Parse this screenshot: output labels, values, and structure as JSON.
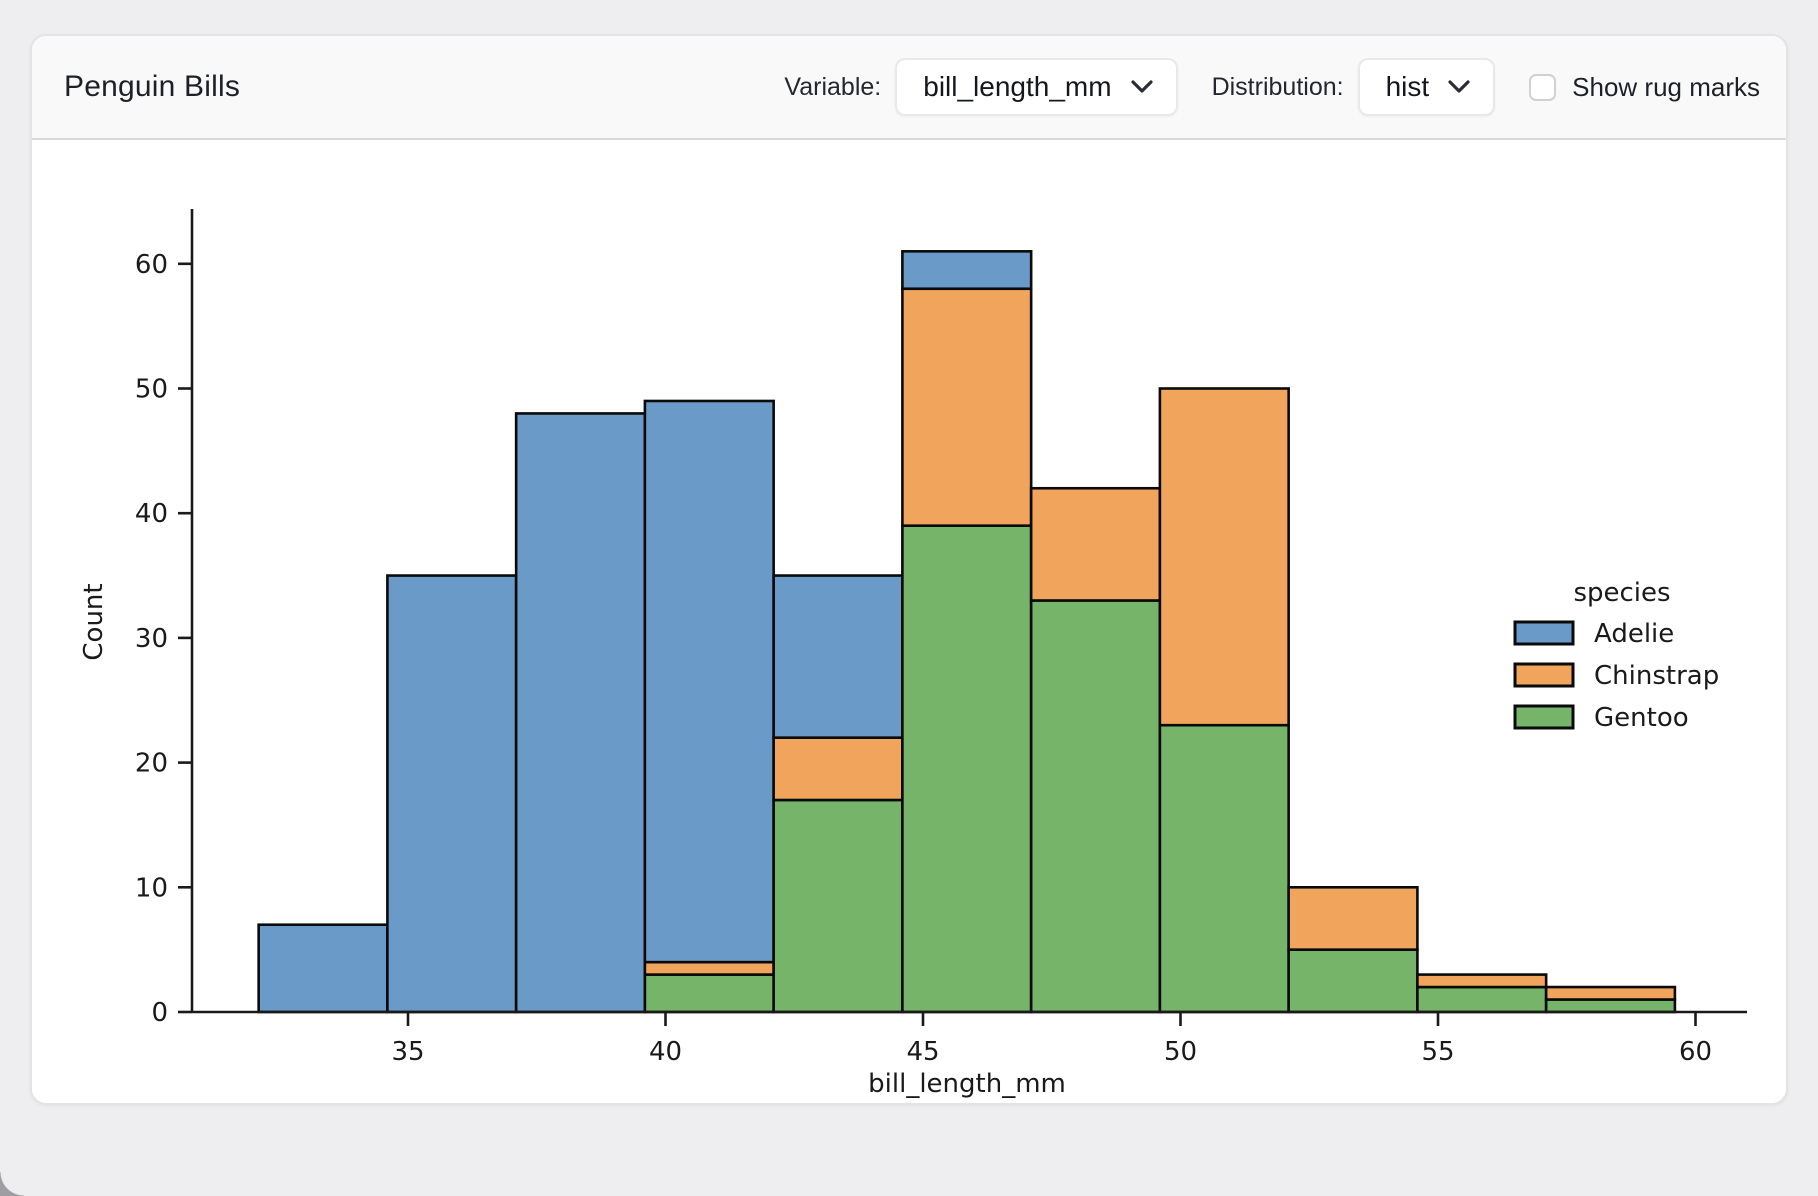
{
  "header": {
    "title": "Penguin Bills",
    "variable_label": "Variable:",
    "variable_value": "bill_length_mm",
    "distribution_label": "Distribution:",
    "distribution_value": "hist",
    "rug_label": "Show rug marks",
    "rug_checked": false
  },
  "chart_data": {
    "type": "bar",
    "subtype": "stacked-histogram",
    "xlabel": "bill_length_mm",
    "ylabel": "Count",
    "legend_title": "species",
    "bin_edges": [
      32.1,
      34.6,
      37.1,
      39.6,
      42.1,
      44.6,
      47.1,
      49.6,
      52.1,
      54.6,
      57.1,
      59.6
    ],
    "series": [
      {
        "name": "Adelie",
        "color": "#6a9ac8",
        "values": [
          7,
          35,
          48,
          45,
          13,
          3,
          0,
          0,
          0,
          0,
          0
        ]
      },
      {
        "name": "Chinstrap",
        "color": "#f0a45c",
        "values": [
          0,
          0,
          0,
          1,
          5,
          19,
          9,
          27,
          5,
          1,
          1
        ]
      },
      {
        "name": "Gentoo",
        "color": "#76b469",
        "values": [
          0,
          0,
          0,
          3,
          17,
          39,
          33,
          23,
          5,
          2,
          1
        ]
      }
    ],
    "stack_order_bottom_to_top": [
      "Gentoo",
      "Chinstrap",
      "Adelie"
    ],
    "stacked_totals": [
      7,
      35,
      48,
      49,
      35,
      61,
      42,
      50,
      10,
      3,
      2
    ],
    "x_ticks": [
      35,
      40,
      45,
      50,
      55,
      60
    ],
    "y_ticks": [
      0,
      10,
      20,
      30,
      40,
      50,
      60
    ],
    "xlim": [
      30.8,
      61.0
    ],
    "ylim": [
      0,
      64.4
    ],
    "grid": false,
    "legend_position": "center right",
    "edge_color": "#0a0a0a"
  }
}
